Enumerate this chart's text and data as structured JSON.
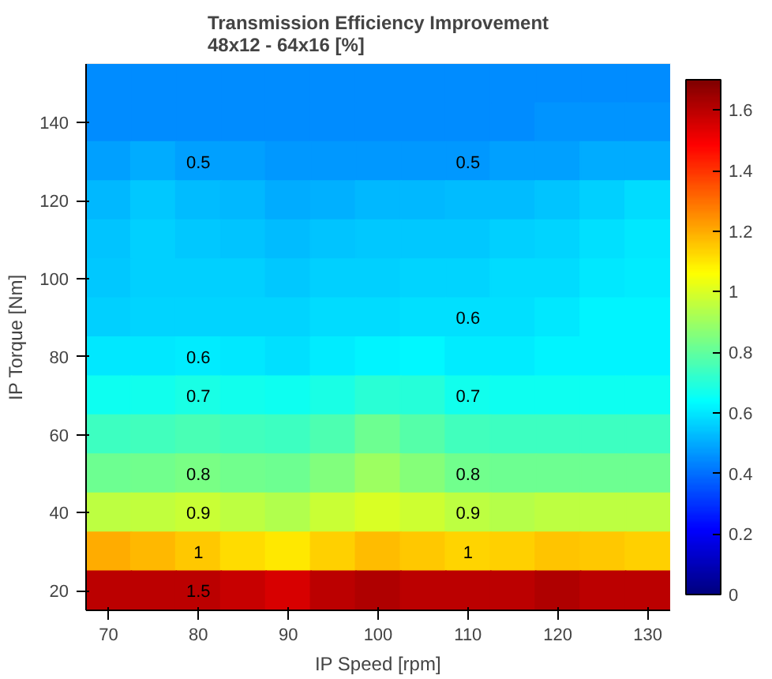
{
  "chart_data": {
    "type": "heatmap",
    "title": "Transmission Efficiency Improvement\n48x12 - 64x16 [%]",
    "xlabel": "IP Speed [rpm]",
    "ylabel": "IP Torque [Nm]",
    "categories": [
      "70",
      null,
      "80",
      null,
      "90",
      null,
      "100",
      null,
      "110",
      null,
      "120",
      null,
      "130"
    ],
    "y_categories": [
      null,
      "140",
      null,
      "120",
      null,
      "100",
      null,
      "80",
      null,
      "60",
      null,
      "40",
      null,
      "20"
    ],
    "cells": [
      [
        0.45,
        0.45,
        0.45,
        0.45,
        0.45,
        0.45,
        0.45,
        0.45,
        0.45,
        0.45,
        0.45,
        0.45,
        0.45
      ],
      [
        0.45,
        0.45,
        0.45,
        0.45,
        0.45,
        0.45,
        0.45,
        0.45,
        0.45,
        0.45,
        0.46,
        0.46,
        0.46
      ],
      [
        0.48,
        0.5,
        0.48,
        0.48,
        0.47,
        0.47,
        0.47,
        0.47,
        0.47,
        0.48,
        0.48,
        0.5,
        0.5
      ],
      [
        0.52,
        0.55,
        0.53,
        0.52,
        0.5,
        0.51,
        0.52,
        0.52,
        0.53,
        0.53,
        0.54,
        0.56,
        0.58
      ],
      [
        0.54,
        0.56,
        0.55,
        0.54,
        0.53,
        0.54,
        0.55,
        0.55,
        0.55,
        0.56,
        0.57,
        0.59,
        0.6
      ],
      [
        0.55,
        0.56,
        0.56,
        0.56,
        0.55,
        0.56,
        0.56,
        0.57,
        0.57,
        0.58,
        0.58,
        0.6,
        0.61
      ],
      [
        0.56,
        0.57,
        0.57,
        0.57,
        0.57,
        0.58,
        0.58,
        0.59,
        0.59,
        0.59,
        0.6,
        0.62,
        0.62
      ],
      [
        0.6,
        0.6,
        0.61,
        0.6,
        0.59,
        0.61,
        0.62,
        0.63,
        0.61,
        0.61,
        0.62,
        0.62,
        0.62
      ],
      [
        0.66,
        0.67,
        0.68,
        0.67,
        0.66,
        0.68,
        0.71,
        0.7,
        0.67,
        0.66,
        0.66,
        0.66,
        0.66
      ],
      [
        0.74,
        0.75,
        0.76,
        0.75,
        0.74,
        0.77,
        0.82,
        0.78,
        0.75,
        0.74,
        0.74,
        0.74,
        0.74
      ],
      [
        0.82,
        0.83,
        0.84,
        0.83,
        0.82,
        0.85,
        0.9,
        0.86,
        0.83,
        0.82,
        0.82,
        0.82,
        0.82
      ],
      [
        0.95,
        0.96,
        0.97,
        0.95,
        0.93,
        0.97,
        1.0,
        0.98,
        0.95,
        0.94,
        0.95,
        0.95,
        0.95
      ],
      [
        1.2,
        1.18,
        1.15,
        1.12,
        1.1,
        1.14,
        1.17,
        1.15,
        1.13,
        1.14,
        1.16,
        1.15,
        1.14
      ],
      [
        1.6,
        1.6,
        1.6,
        1.58,
        1.55,
        1.6,
        1.62,
        1.6,
        1.6,
        1.6,
        1.62,
        1.6,
        1.6
      ]
    ],
    "clim": [
      0,
      1.7
    ],
    "cticks": [
      0,
      0.2,
      0.4,
      0.6,
      0.8,
      1,
      1.2,
      1.4,
      1.6
    ],
    "annotations": [
      "0.5",
      "0.5",
      "0.6",
      "0.6",
      "0.7",
      "0.7",
      "0.8",
      "0.8",
      "0.9",
      "0.9",
      "1",
      "1",
      "1.5"
    ]
  }
}
